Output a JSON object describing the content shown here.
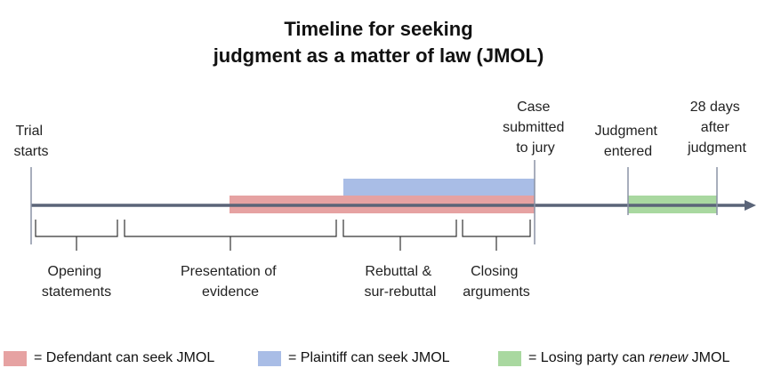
{
  "title": {
    "line1": "Timeline for seeking",
    "line2": "judgment as a matter of law (JMOL)"
  },
  "markers": {
    "trial_starts": [
      "Trial",
      "starts"
    ],
    "case_submitted": [
      "Case",
      "submitted",
      "to jury"
    ],
    "judgment_entered": [
      "Judgment",
      "entered"
    ],
    "days_after": [
      "28 days",
      "after",
      "judgment"
    ]
  },
  "phases": {
    "opening": [
      "Opening",
      "statements"
    ],
    "evidence": [
      "Presentation of",
      "evidence"
    ],
    "rebuttal": [
      "Rebuttal &",
      "sur-rebuttal"
    ],
    "closing": [
      "Closing",
      "arguments"
    ]
  },
  "legend": {
    "defendant": {
      "label": "= Defendant can seek JMOL",
      "color": "#e6a2a2"
    },
    "plaintiff": {
      "label": "= Plaintiff can seek JMOL",
      "color": "#a9bde6"
    },
    "losing_prefix": "= Losing party can ",
    "losing_emph": "renew",
    "losing_suffix": " JMOL",
    "losing_color": "#a9d8a0"
  },
  "colors": {
    "axis": "#5a6478",
    "defendant": "#e6a2a2",
    "plaintiff": "#a9bde6",
    "losing": "#a9d8a0"
  }
}
